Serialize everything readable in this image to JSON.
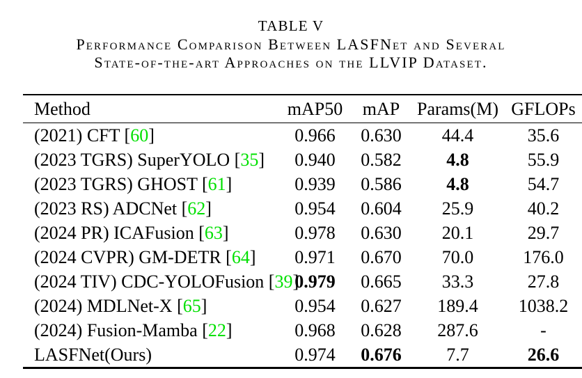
{
  "caption": {
    "label": "TABLE V",
    "title_line1": "Performance Comparison Between LASFNet and Several",
    "title_line2": "State-of-the-art Approaches on the LLVIP Dataset."
  },
  "table": {
    "columns": [
      "Method",
      "mAP50",
      "mAP",
      "Params(M)",
      "GFLOPs"
    ],
    "citation_color": "#00E000",
    "rows": [
      {
        "method": "(2021) CFT",
        "citation": "60",
        "cells": [
          {
            "t": "0.966"
          },
          {
            "t": "0.630"
          },
          {
            "t": "44.4"
          },
          {
            "t": "35.6"
          }
        ]
      },
      {
        "method": "(2023 TGRS) SuperYOLO",
        "citation": "35",
        "cells": [
          {
            "t": "0.940"
          },
          {
            "t": "0.582"
          },
          {
            "t": "4.8",
            "b": true
          },
          {
            "t": "55.9"
          }
        ]
      },
      {
        "method": "(2023 TGRS) GHOST",
        "citation": "61",
        "cells": [
          {
            "t": "0.939"
          },
          {
            "t": "0.586"
          },
          {
            "t": "4.8",
            "b": true
          },
          {
            "t": "54.7"
          }
        ]
      },
      {
        "method": "(2023 RS) ADCNet",
        "citation": "62",
        "cells": [
          {
            "t": "0.954"
          },
          {
            "t": "0.604"
          },
          {
            "t": "25.9"
          },
          {
            "t": "40.2"
          }
        ]
      },
      {
        "method": "(2024 PR) ICAFusion",
        "citation": "63",
        "cells": [
          {
            "t": "0.978"
          },
          {
            "t": "0.630"
          },
          {
            "t": "20.1"
          },
          {
            "t": "29.7"
          }
        ]
      },
      {
        "method": "(2024 CVPR) GM-DETR",
        "citation": "64",
        "cells": [
          {
            "t": "0.971"
          },
          {
            "t": "0.670"
          },
          {
            "t": "70.0"
          },
          {
            "t": "176.0"
          }
        ]
      },
      {
        "method": "(2024 TIV) CDC-YOLOFusion",
        "citation": "39",
        "cells": [
          {
            "t": "0.979",
            "b": true
          },
          {
            "t": "0.665"
          },
          {
            "t": "33.3"
          },
          {
            "t": "27.8"
          }
        ]
      },
      {
        "method": "(2024) MDLNet-X",
        "citation": "65",
        "cells": [
          {
            "t": "0.954"
          },
          {
            "t": "0.627"
          },
          {
            "t": "189.4"
          },
          {
            "t": "1038.2"
          }
        ]
      },
      {
        "method": "(2024) Fusion-Mamba",
        "citation": "22",
        "cells": [
          {
            "t": "0.968"
          },
          {
            "t": "0.628"
          },
          {
            "t": "287.6"
          },
          {
            "t": "-"
          }
        ]
      },
      {
        "method": "LASFNet(Ours)",
        "citation": null,
        "cells": [
          {
            "t": "0.974"
          },
          {
            "t": "0.676",
            "b": true
          },
          {
            "t": "7.7"
          },
          {
            "t": "26.6",
            "b": true
          }
        ]
      }
    ]
  }
}
